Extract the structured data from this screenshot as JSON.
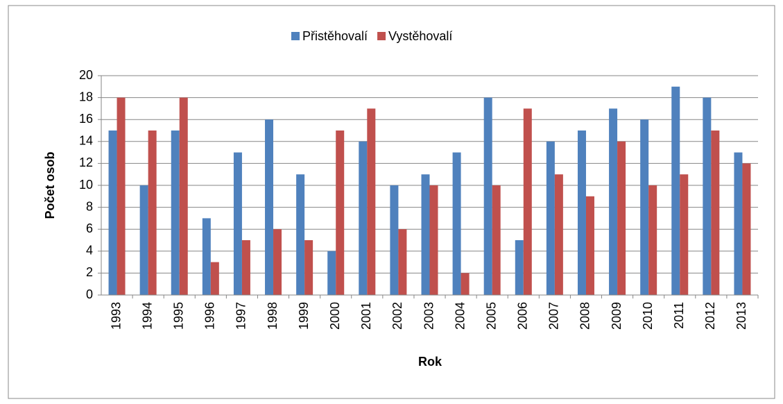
{
  "chart_data": {
    "type": "bar",
    "categories": [
      "1993",
      "1994",
      "1995",
      "1996",
      "1997",
      "1998",
      "1999",
      "2000",
      "2001",
      "2002",
      "2003",
      "2004",
      "2005",
      "2006",
      "2007",
      "2008",
      "2009",
      "2010",
      "2011",
      "2012",
      "2013"
    ],
    "series": [
      {
        "name": "Přistěhovalí",
        "color": "#4f81bd",
        "values": [
          15,
          10,
          15,
          7,
          13,
          16,
          11,
          4,
          14,
          10,
          11,
          13,
          18,
          5,
          14,
          15,
          17,
          16,
          19,
          18,
          13
        ]
      },
      {
        "name": "Vystěhovalí",
        "color": "#c0504d",
        "values": [
          18,
          15,
          18,
          3,
          5,
          6,
          5,
          15,
          17,
          6,
          10,
          2,
          10,
          17,
          11,
          9,
          14,
          10,
          11,
          15,
          12
        ]
      }
    ],
    "xlabel": "Rok",
    "ylabel": "Počet osob",
    "ylim": [
      0,
      20
    ],
    "yticks": [
      0,
      2,
      4,
      6,
      8,
      10,
      12,
      14,
      16,
      18,
      20
    ],
    "grid": true,
    "legend": "top"
  }
}
